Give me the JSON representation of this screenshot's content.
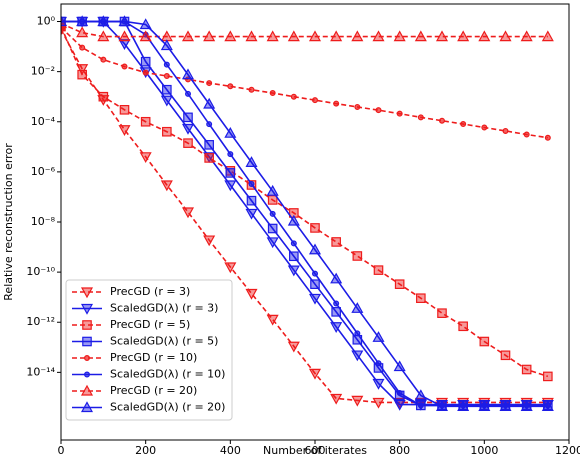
{
  "chart_data": {
    "type": "line",
    "xlabel": "Number of iterates",
    "ylabel": "Relative reconstruction error",
    "x": [
      0,
      50,
      100,
      150,
      200,
      250,
      300,
      350,
      400,
      450,
      500,
      550,
      600,
      650,
      700,
      750,
      800,
      850,
      900,
      950,
      1000,
      1050,
      1100,
      1150
    ],
    "series": [
      {
        "name": "PrecGD (r = 3)",
        "color": "#ee1c1c",
        "dashed": true,
        "marker": "v",
        "values": [
          0.48,
          0.013,
          0.00076,
          4.8e-05,
          4e-06,
          3e-07,
          2.5e-08,
          1.9e-09,
          1.6e-10,
          1.4e-11,
          1.3e-12,
          1.1e-13,
          9.1e-15,
          9.1e-16,
          7.6e-16,
          6.3e-16,
          6.3e-16,
          6.3e-16,
          6.3e-16,
          6.3e-16,
          6.3e-16,
          6.3e-16,
          6.3e-16,
          6.3e-16
        ]
      },
      {
        "name": "ScaledGD(λ) (r = 3)",
        "color": "#1c1ce6",
        "dashed": false,
        "marker": "v",
        "values": [
          1,
          1,
          1,
          0.13,
          0.0098,
          0.00072,
          5.4e-05,
          4e-06,
          3e-07,
          2.2e-08,
          1.6e-09,
          1.2e-10,
          8.9e-12,
          6.6e-13,
          4.9e-14,
          3.6e-15,
          5.2e-16,
          5.2e-16,
          5.2e-16,
          5.2e-16,
          5.2e-16,
          5.2e-16,
          5.2e-16,
          5.2e-16
        ]
      },
      {
        "name": "PrecGD (r = 5)",
        "color": "#ee1c1c",
        "dashed": true,
        "marker": "s",
        "values": [
          0.63,
          0.0076,
          0.001,
          0.0003,
          0.0001,
          4e-05,
          1.4e-05,
          3.6e-06,
          1.1e-06,
          3e-07,
          7.6e-08,
          2.3e-08,
          5.8e-09,
          1.6e-09,
          4.4e-10,
          1.2e-10,
          3.3e-11,
          9.1e-12,
          2.3e-12,
          6.9e-13,
          1.7e-13,
          4.8e-14,
          1.3e-14,
          6.9e-15
        ]
      },
      {
        "name": "ScaledGD(λ) (r = 5)",
        "color": "#1c1ce6",
        "dashed": false,
        "marker": "s",
        "values": [
          1,
          1,
          1,
          1,
          0.025,
          0.0019,
          0.00015,
          1.2e-05,
          9.1e-07,
          7.1e-08,
          5.5e-09,
          4.3e-10,
          3.3e-11,
          2.6e-12,
          2e-13,
          1.5e-14,
          1.2e-15,
          4.8e-16,
          4.8e-16,
          4.8e-16,
          4.8e-16,
          4.8e-16,
          4.8e-16,
          4.8e-16
        ]
      },
      {
        "name": "PrecGD (r = 10)",
        "color": "#ee1c1c",
        "dashed": true,
        "marker": "o",
        "values": [
          0.58,
          0.091,
          0.03,
          0.016,
          0.0091,
          0.0067,
          0.0049,
          0.0035,
          0.0026,
          0.0019,
          0.0014,
          0.001,
          0.00073,
          0.00053,
          0.00039,
          0.00029,
          0.00021,
          0.00015,
          0.00011,
          8.1e-05,
          5.9e-05,
          4.3e-05,
          3.1e-05,
          2.3e-05
        ]
      },
      {
        "name": "ScaledGD(λ) (r = 10)",
        "color": "#1c1ce6",
        "dashed": false,
        "marker": "o",
        "values": [
          1,
          1,
          1,
          1,
          0.3,
          0.019,
          0.0013,
          8e-05,
          5.1e-06,
          3.3e-07,
          2.1e-08,
          1.4e-09,
          8.7e-11,
          5.6e-12,
          3.6e-13,
          2.3e-14,
          1.5e-15,
          4.8e-16,
          4.8e-16,
          4.8e-16,
          4.8e-16,
          4.8e-16,
          4.8e-16,
          4.8e-16
        ]
      },
      {
        "name": "PrecGD (r = 20)",
        "color": "#ee1c1c",
        "dashed": true,
        "marker": "^",
        "values": [
          0.83,
          0.36,
          0.25,
          0.25,
          0.25,
          0.25,
          0.25,
          0.25,
          0.25,
          0.25,
          0.25,
          0.25,
          0.25,
          0.25,
          0.25,
          0.25,
          0.25,
          0.25,
          0.25,
          0.25,
          0.25,
          0.25,
          0.25,
          0.25
        ]
      },
      {
        "name": "ScaledGD(λ) (r = 20)",
        "color": "#1c1ce6",
        "dashed": false,
        "marker": "^",
        "values": [
          1,
          1,
          1,
          1,
          0.76,
          0.11,
          0.0076,
          0.00051,
          3.5e-05,
          2.4e-06,
          1.7e-07,
          1.1e-08,
          7.8e-10,
          5.4e-11,
          3.6e-12,
          2.5e-13,
          1.7e-14,
          1.2e-15,
          4.4e-16,
          4.4e-16,
          4.4e-16,
          4.4e-16,
          4.4e-16,
          4.4e-16
        ]
      }
    ],
    "xlim": [
      0,
      1200
    ],
    "xticks": [
      0,
      200,
      400,
      600,
      800,
      1000,
      1200
    ],
    "ylim": [
      2e-17,
      5
    ],
    "ylog": true,
    "yticks": [
      {
        "value": 1,
        "label": "10⁰"
      },
      {
        "value": 0.01,
        "label": "10⁻²"
      },
      {
        "value": 0.0001,
        "label": "10⁻⁴"
      },
      {
        "value": 1e-06,
        "label": "10⁻⁶"
      },
      {
        "value": 1e-08,
        "label": "10⁻⁸"
      },
      {
        "value": 1e-10,
        "label": "10⁻¹⁰"
      },
      {
        "value": 1e-12,
        "label": "10⁻¹²"
      },
      {
        "value": 1e-14,
        "label": "10⁻¹⁴"
      }
    ],
    "legend": "lower left"
  }
}
